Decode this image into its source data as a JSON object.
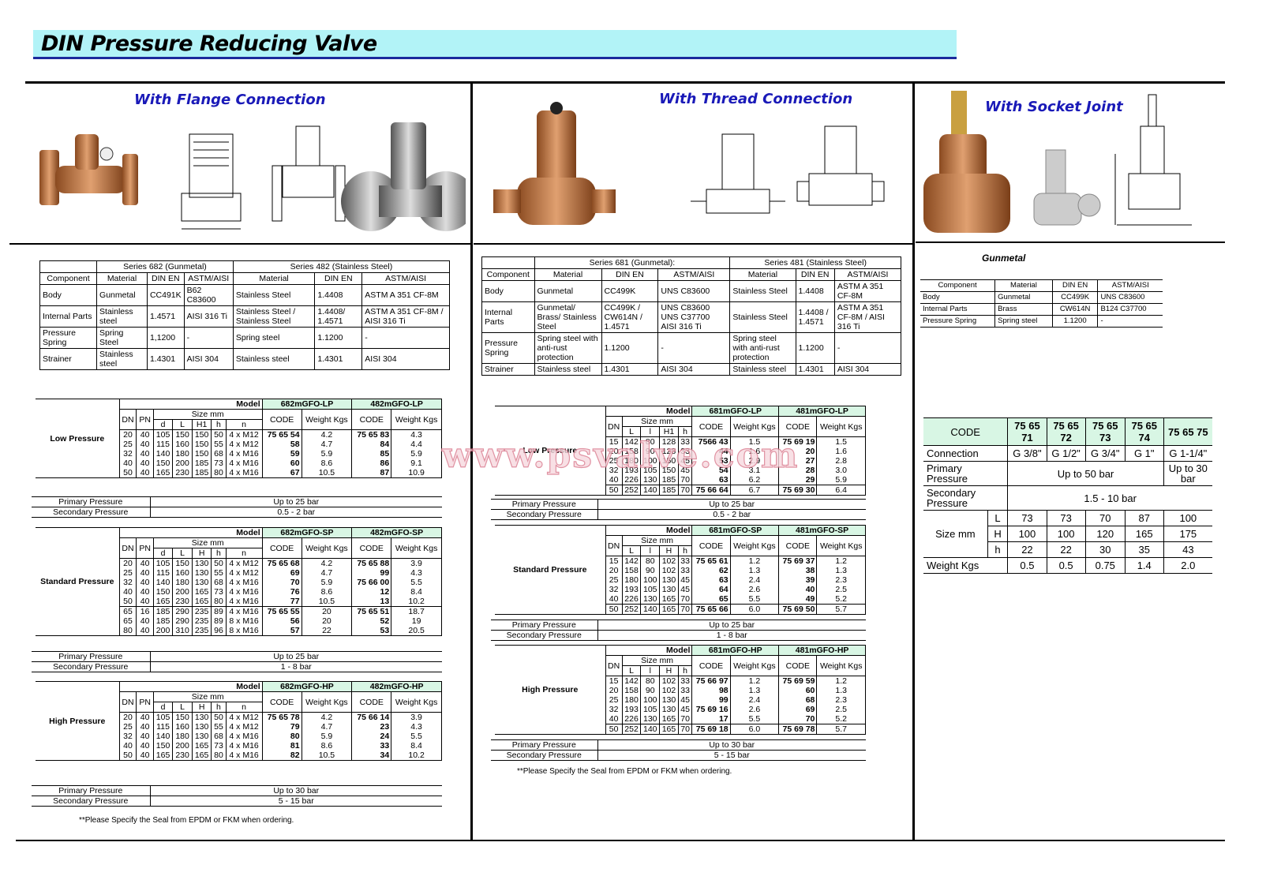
{
  "title": "DIN Pressure Reducing Valve",
  "watermark": "www.psvalve.com",
  "labels": {
    "model": "Model",
    "dn": "DN",
    "pn": "PN",
    "size_mm": "Size mm",
    "code": "CODE",
    "weight": "Weight Kgs",
    "primary": "Primary Pressure",
    "secondary": "Secondary Pressure",
    "component": "Component",
    "material": "Material",
    "din_en": "DIN EN",
    "astm": "ASTM/AISI",
    "connection": "Connection",
    "size": "Size mm",
    "weight_kgs": "Weight Kgs"
  },
  "flange": {
    "heading": "With Flange Connection",
    "materials": {
      "series": [
        "Series 682 (Gunmetal)",
        "Series 482 (Stainless Steel)"
      ],
      "rows": [
        [
          "Body",
          "Gunmetal",
          "CC491K",
          "B62 C83600",
          "Stainless Steel",
          "1.4408",
          "ASTM A 351 CF-8M"
        ],
        [
          "Internal Parts",
          "Stainless steel",
          "1.4571",
          "AISI 316 Ti",
          "Stainless Steel / Stainless Steel",
          "1.4408/ 1.4571",
          "ASTM A 351 CF-8M / AISI 316 Ti"
        ],
        [
          "Pressure Spring",
          "Spring Steel",
          "1,1200",
          "-",
          "Spring steel",
          "1.1200",
          "-"
        ],
        [
          "Strainer",
          "Stainless steel",
          "1.4301",
          "AISI 304",
          "Stainless steel",
          "1.4301",
          "AISI 304"
        ]
      ]
    },
    "groups": [
      {
        "label": "Low Pressure",
        "models": [
          "682mGFO-LP",
          "482mGFO-LP"
        ],
        "size_cols": [
          "d",
          "L",
          "H1",
          "h",
          "n"
        ],
        "rows": [
          [
            "20",
            "40",
            "105",
            "150",
            "150",
            "50",
            "4 x M12",
            "75 65 54",
            "4.2",
            "75 65 83",
            "4.3"
          ],
          [
            "25",
            "40",
            "115",
            "160",
            "150",
            "55",
            "4 x M12",
            "58",
            "4.7",
            "84",
            "4.4"
          ],
          [
            "32",
            "40",
            "140",
            "180",
            "150",
            "68",
            "4 x M16",
            "59",
            "5.9",
            "85",
            "5.9"
          ],
          [
            "40",
            "40",
            "150",
            "200",
            "185",
            "73",
            "4 x M16",
            "60",
            "8.6",
            "86",
            "9.1"
          ],
          [
            "50",
            "40",
            "165",
            "230",
            "185",
            "80",
            "4 x M16",
            "67",
            "10.5",
            "87",
            "10.9"
          ]
        ],
        "primary": "Up to 25 bar",
        "secondary": "0.5 - 2  bar"
      },
      {
        "label": "Standard Pressure",
        "models": [
          "682mGFO-SP",
          "482mGFO-SP"
        ],
        "size_cols": [
          "d",
          "L",
          "H",
          "h",
          "n"
        ],
        "rows": [
          [
            "20",
            "40",
            "105",
            "150",
            "130",
            "50",
            "4 x M12",
            "75 65 68",
            "4.2",
            "75 65 88",
            "3.9"
          ],
          [
            "25",
            "40",
            "115",
            "160",
            "130",
            "55",
            "4 x M12",
            "69",
            "4.7",
            "99",
            "4.3"
          ],
          [
            "32",
            "40",
            "140",
            "180",
            "130",
            "68",
            "4 x M16",
            "70",
            "5.9",
            "75 66 00",
            "5.5"
          ],
          [
            "40",
            "40",
            "150",
            "200",
            "165",
            "73",
            "4 x M16",
            "76",
            "8.6",
            "12",
            "8.4"
          ],
          [
            "50",
            "40",
            "165",
            "230",
            "165",
            "80",
            "4 x M16",
            "77",
            "10.5",
            "13",
            "10.2"
          ],
          [
            "65",
            "16",
            "185",
            "290",
            "235",
            "89",
            "4 x M16",
            "75 65 55",
            "20",
            "75 65 51",
            "18.7"
          ],
          [
            "65",
            "40",
            "185",
            "290",
            "235",
            "89",
            "8 x M16",
            "56",
            "20",
            "52",
            "19"
          ],
          [
            "80",
            "40",
            "200",
            "310",
            "235",
            "96",
            "8 x M16",
            "57",
            "22",
            "53",
            "20.5"
          ]
        ],
        "primary": "Up to 25 bar",
        "secondary": "1 - 8  bar"
      },
      {
        "label": "High Pressure",
        "models": [
          "682mGFO-HP",
          "482mGFO-HP"
        ],
        "size_cols": [
          "d",
          "L",
          "H",
          "h",
          "n"
        ],
        "rows": [
          [
            "20",
            "40",
            "105",
            "150",
            "130",
            "50",
            "4 x M12",
            "75 65 78",
            "4.2",
            "75 66 14",
            "3.9"
          ],
          [
            "25",
            "40",
            "115",
            "160",
            "130",
            "55",
            "4 x M12",
            "79",
            "4.7",
            "23",
            "4.3"
          ],
          [
            "32",
            "40",
            "140",
            "180",
            "130",
            "68",
            "4 x M16",
            "80",
            "5.9",
            "24",
            "5.5"
          ],
          [
            "40",
            "40",
            "150",
            "200",
            "165",
            "73",
            "4 x M16",
            "81",
            "8.6",
            "33",
            "8.4"
          ],
          [
            "50",
            "40",
            "165",
            "230",
            "165",
            "80",
            "4 x M16",
            "82",
            "10.5",
            "34",
            "10.2"
          ]
        ],
        "primary": "Up to 30 bar",
        "secondary": "5 - 15  bar"
      }
    ],
    "note": "**Please Specify the Seal from EPDM or FKM when ordering."
  },
  "thread": {
    "heading": "With Thread Connection",
    "materials": {
      "series": [
        "Series 681 (Gunmetal):",
        "Series 481 (Stainless Steel)"
      ],
      "rows": [
        [
          "Body",
          "Gunmetal",
          "CC499K",
          "UNS C83600",
          "Stainless Steel",
          "1.4408",
          "ASTM A 351 CF-8M"
        ],
        [
          "Internal Parts",
          "Gunmetal/ Brass/ Stainless Steel",
          "CC499K / CW614N / 1.4571",
          "UNS C83600 UNS C37700 AISI 316 Ti",
          "Stainless Steel",
          "1.4408 / 1.4571",
          "ASTM A 351 CF-8M / AISI 316 Ti"
        ],
        [
          "Pressure Spring",
          "Spring steel with anti-rust protection",
          "1.1200",
          "-",
          "Spring steel with anti-rust protection",
          "1.1200",
          "-"
        ],
        [
          "Strainer",
          "Stainless steel",
          "1.4301",
          "AISI 304",
          "Stainless steel",
          "1.4301",
          "AISI 304"
        ]
      ]
    },
    "groups": [
      {
        "label": "Low Pressure",
        "models": [
          "681mGFO-LP",
          "481mGFO-LP"
        ],
        "size_cols": [
          "L",
          "l",
          "H1",
          "h"
        ],
        "rows": [
          [
            "15",
            "142",
            "80",
            "128",
            "33",
            "7566 43",
            "1.5",
            "75 69 19",
            "1.5"
          ],
          [
            "20",
            "158",
            "90",
            "128",
            "33",
            "44",
            "1.6",
            "20",
            "1.6"
          ],
          [
            "25",
            "180",
            "100",
            "150",
            "45",
            "53",
            "2.9",
            "27",
            "2.8"
          ],
          [
            "32",
            "193",
            "105",
            "150",
            "45",
            "54",
            "3.1",
            "28",
            "3.0"
          ],
          [
            "40",
            "226",
            "130",
            "185",
            "70",
            "63",
            "6.2",
            "29",
            "5.9"
          ],
          [
            "50",
            "252",
            "140",
            "185",
            "70",
            "75 66 64",
            "6.7",
            "75 69 30",
            "6.4"
          ]
        ],
        "primary": "Up to 25 bar",
        "secondary": "0.5 - 2  bar"
      },
      {
        "label": "Standard Pressure",
        "models": [
          "681mGFO-SP",
          "481mGFO-SP"
        ],
        "size_cols": [
          "L",
          "l",
          "H",
          "h"
        ],
        "rows": [
          [
            "15",
            "142",
            "80",
            "102",
            "33",
            "75 65 61",
            "1.2",
            "75 69 37",
            "1.2"
          ],
          [
            "20",
            "158",
            "90",
            "102",
            "33",
            "62",
            "1.3",
            "38",
            "1.3"
          ],
          [
            "25",
            "180",
            "100",
            "130",
            "45",
            "63",
            "2.4",
            "39",
            "2.3"
          ],
          [
            "32",
            "193",
            "105",
            "130",
            "45",
            "64",
            "2.6",
            "40",
            "2.5"
          ],
          [
            "40",
            "226",
            "130",
            "165",
            "70",
            "65",
            "5.5",
            "49",
            "5.2"
          ],
          [
            "50",
            "252",
            "140",
            "165",
            "70",
            "75 65 66",
            "6.0",
            "75 69 50",
            "5.7"
          ]
        ],
        "primary": "Up to 25 bar",
        "secondary": "1 - 8  bar"
      },
      {
        "label": "High Pressure",
        "models": [
          "681mGFO-HP",
          "481mGFO-HP"
        ],
        "size_cols": [
          "L",
          "l",
          "H",
          "h"
        ],
        "rows": [
          [
            "15",
            "142",
            "80",
            "102",
            "33",
            "75 66 97",
            "1.2",
            "75 69 59",
            "1.2"
          ],
          [
            "20",
            "158",
            "90",
            "102",
            "33",
            "98",
            "1.3",
            "60",
            "1.3"
          ],
          [
            "25",
            "180",
            "100",
            "130",
            "45",
            "99",
            "2.4",
            "68",
            "2.3"
          ],
          [
            "32",
            "193",
            "105",
            "130",
            "45",
            "75 69 16",
            "2.6",
            "69",
            "2.5"
          ],
          [
            "40",
            "226",
            "130",
            "165",
            "70",
            "17",
            "5.5",
            "70",
            "5.2"
          ],
          [
            "50",
            "252",
            "140",
            "165",
            "70",
            "75 69 18",
            "6.0",
            "75 69 78",
            "5.7"
          ]
        ],
        "primary": "Up to 30 bar",
        "secondary": "5 - 15  bar"
      }
    ],
    "note": "**Please Specify the Seal from EPDM or FKM when ordering."
  },
  "socket": {
    "heading": "With Socket Joint",
    "material_title": "Gunmetal",
    "materials": [
      [
        "Body",
        "Gunmetal",
        "CC499K",
        "UNS C83600"
      ],
      [
        "Internal Parts",
        "Brass",
        "CW614N",
        "B124 C37700"
      ],
      [
        "Pressure Spring",
        "Spring steel",
        "1.1200",
        "-"
      ]
    ],
    "codes": [
      "75 65 71",
      "75 65 72",
      "75 65 73",
      "75 65 74",
      "75 65 75"
    ],
    "connections": [
      "G 3/8\"",
      "G 1/2\"",
      "G 3/4\"",
      "G 1\"",
      "G 1-1/4\""
    ],
    "primary": [
      "Up to 50 bar",
      "Up to 30 bar"
    ],
    "secondary": "1.5 - 10 bar",
    "sizes": [
      {
        "dim": "L",
        "values": [
          "73",
          "73",
          "70",
          "87",
          "100"
        ]
      },
      {
        "dim": "H",
        "values": [
          "100",
          "100",
          "120",
          "165",
          "175"
        ]
      },
      {
        "dim": "h",
        "values": [
          "22",
          "22",
          "30",
          "35",
          "43"
        ]
      }
    ],
    "weights": [
      "0.5",
      "0.5",
      "0.75",
      "1.4",
      "2.0"
    ]
  },
  "colors": {
    "title_bg": "#b2f3f7",
    "title_rule": "#1b2a9c",
    "heading": "#1a1ab8",
    "model_bg": "#d8f6e4",
    "bronze": "#c8844a"
  }
}
